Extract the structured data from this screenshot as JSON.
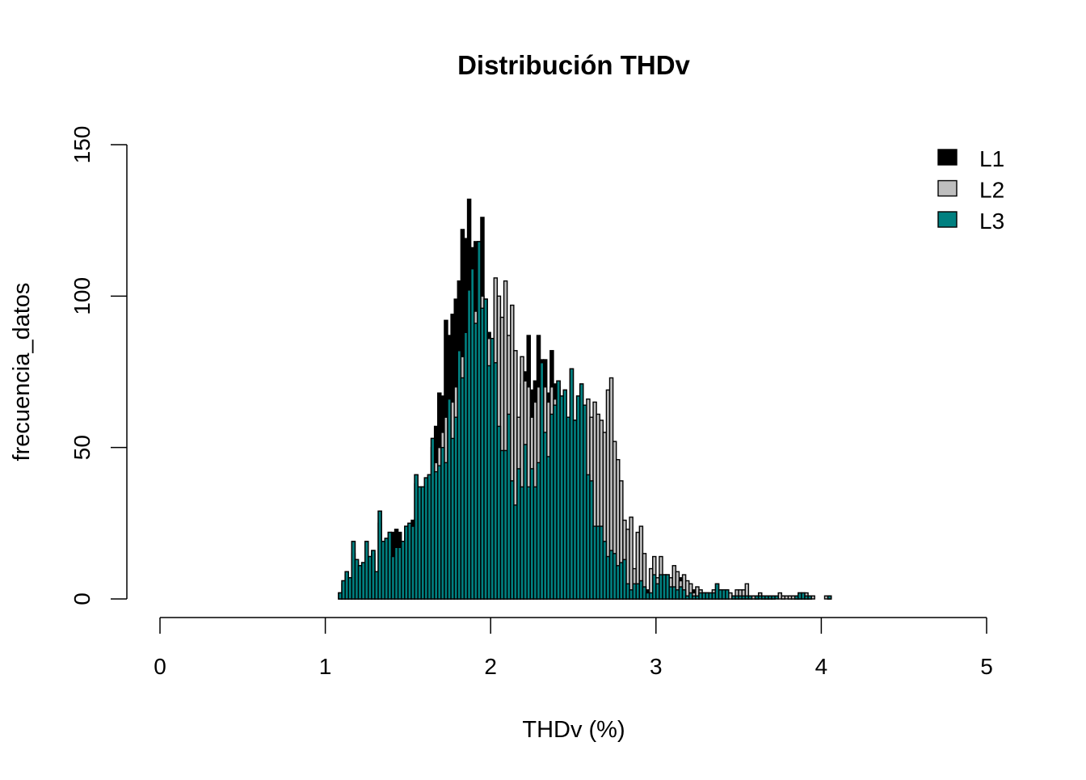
{
  "chart_data": {
    "type": "bar",
    "title": "Distribución THDv",
    "xlabel": "THDv (%)",
    "ylabel": "frecuencia_datos",
    "xlim": [
      0,
      5
    ],
    "ylim": [
      0,
      150
    ],
    "x_ticks": [
      "0",
      "1",
      "2",
      "3",
      "4",
      "5"
    ],
    "y_ticks": [
      "0",
      "50",
      "100",
      "150"
    ],
    "bin_start": 1.08,
    "bin_width": 0.02,
    "legend_position": "top-right",
    "series": [
      {
        "name": "L1",
        "color": "#000000",
        "values": [
          2,
          6,
          9,
          7,
          19,
          13,
          11,
          12,
          19,
          14,
          16,
          9,
          29,
          19,
          20,
          22,
          22,
          23,
          22,
          19,
          24,
          25,
          26,
          41,
          37,
          37,
          40,
          41,
          53,
          57,
          68,
          67,
          92,
          87,
          94,
          99,
          105,
          122,
          119,
          132,
          116,
          118,
          118,
          126,
          99,
          88,
          68,
          70,
          93,
          66,
          50,
          55,
          56,
          56,
          60,
          71,
          75,
          87,
          69,
          72,
          87,
          79,
          79,
          68,
          82,
          71,
          72,
          65,
          60,
          55,
          50,
          45,
          40,
          38,
          35,
          30,
          28,
          22,
          20,
          18,
          16,
          12,
          12,
          10,
          9,
          8,
          7,
          6,
          5,
          5,
          4,
          4,
          4,
          3,
          3,
          6,
          5,
          6,
          6,
          5,
          4,
          3,
          3,
          7,
          3,
          2,
          2,
          3,
          3,
          2,
          2,
          2,
          1,
          2,
          3,
          2,
          2,
          1,
          1,
          1,
          1,
          1,
          1,
          1,
          1,
          1,
          1,
          0,
          1,
          1,
          1,
          1,
          0,
          0,
          1,
          0,
          1,
          1,
          1,
          1,
          1,
          1,
          1,
          0,
          0,
          0,
          0,
          0,
          1
        ]
      },
      {
        "name": "L2",
        "color": "#BEBEBE",
        "values": [
          2,
          5,
          8,
          7,
          15,
          12,
          10,
          11,
          17,
          13,
          15,
          9,
          25,
          18,
          19,
          20,
          14,
          17,
          17,
          19,
          23,
          24,
          24,
          38,
          36,
          36,
          40,
          41,
          50,
          45,
          50,
          55,
          60,
          66,
          65,
          70,
          82,
          80,
          88,
          102,
          105,
          95,
          115,
          100,
          99,
          86,
          86,
          106,
          100,
          93,
          105,
          87,
          97,
          82,
          60,
          80,
          72,
          70,
          60,
          65,
          70,
          75,
          70,
          65,
          70,
          66,
          70,
          67,
          69,
          60,
          76,
          59,
          67,
          71,
          64,
          66,
          60,
          65,
          61,
          59,
          55,
          69,
          73,
          52,
          46,
          39,
          26,
          23,
          27,
          10,
          22,
          24,
          15,
          2,
          10,
          14,
          7,
          14,
          8,
          8,
          7,
          11,
          9,
          6,
          8,
          6,
          5,
          2,
          4,
          3,
          2,
          2,
          2,
          3,
          5,
          3,
          3,
          3,
          2,
          1,
          3,
          3,
          3,
          5,
          1,
          1,
          1,
          2,
          1,
          1,
          1,
          1,
          0,
          2,
          1,
          1,
          1,
          1,
          1,
          2,
          2,
          2,
          1,
          1,
          0,
          0,
          0,
          1,
          1
        ]
      },
      {
        "name": "L3",
        "color": "#008080",
        "values": [
          2,
          6,
          9,
          7,
          19,
          13,
          11,
          12,
          19,
          14,
          16,
          9,
          29,
          19,
          20,
          22,
          14,
          17,
          17,
          19,
          24,
          25,
          24,
          41,
          37,
          37,
          40,
          41,
          53,
          42,
          44,
          50,
          45,
          66,
          53,
          60,
          82,
          73,
          88,
          102,
          109,
          91,
          118,
          96,
          99,
          77,
          86,
          78,
          57,
          49,
          49,
          61,
          39,
          31,
          43,
          37,
          51,
          37,
          43,
          37,
          45,
          78,
          55,
          47,
          61,
          64,
          72,
          67,
          69,
          60,
          76,
          59,
          67,
          71,
          64,
          41,
          39,
          24,
          24,
          24,
          19,
          14,
          16,
          15,
          11,
          12,
          13,
          5,
          3,
          5,
          5,
          6,
          4,
          2,
          2,
          8,
          5,
          8,
          8,
          8,
          4,
          4,
          3,
          4,
          3,
          1,
          2,
          1,
          1,
          2,
          2,
          2,
          2,
          2,
          5,
          3,
          3,
          3,
          0,
          1,
          1,
          1,
          1,
          1,
          1,
          0,
          1,
          1,
          1,
          1,
          1,
          1,
          1,
          0,
          0,
          0,
          0,
          0,
          1,
          2,
          2,
          1,
          1,
          0,
          0,
          0,
          0,
          0,
          1
        ]
      }
    ]
  }
}
